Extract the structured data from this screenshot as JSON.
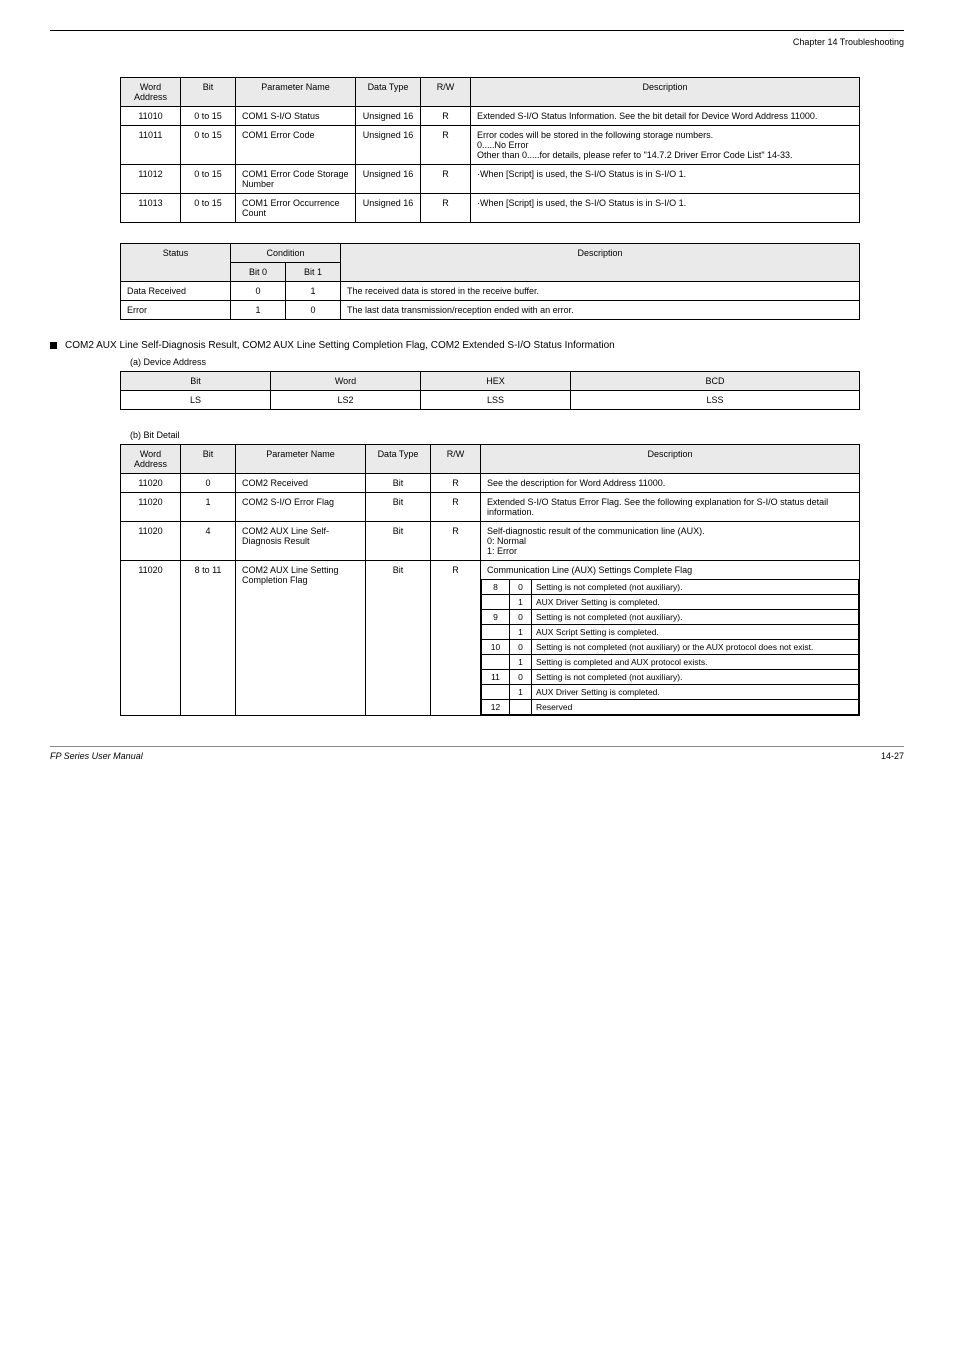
{
  "header_right": "Chapter 14 Troubleshooting",
  "table1": {
    "columns": [
      "Word Address",
      "Bit",
      "Parameter Name",
      "Data Type",
      "R/W",
      "Description"
    ],
    "rows": [
      {
        "wa": "11010",
        "bit": "0 to 15",
        "pname": "COM1 S-I/O Status",
        "dtype": "Unsigned 16",
        "rw": "R",
        "desc": "Extended S-I/O Status Information. See the bit detail for Device Word Address 11000."
      },
      {
        "wa": "11011",
        "bit": "0 to 15",
        "pname": "COM1 Error Code",
        "dtype": "Unsigned 16",
        "rw": "R",
        "desc": "Error codes will be stored in the following storage numbers.\n0.....No Error\nOther than 0.....for details, please refer to \"14.7.2 Driver Error Code List\"  14-33."
      },
      {
        "wa": "11012",
        "bit": "0 to 15",
        "pname": "COM1 Error Code Storage Number",
        "dtype": "Unsigned 16",
        "rw": "R",
        "desc": "·When [Script] is used, the S-I/O Status is in S-I/O 1."
      },
      {
        "wa": "11013",
        "bit": "0 to 15",
        "pname": "COM1 Error Occurrence Count",
        "dtype": "Unsigned 16",
        "rw": "R",
        "desc": "·When [Script] is used, the S-I/O Status is in S-I/O 1."
      }
    ]
  },
  "table2": {
    "header_top": [
      "Condition",
      "Condition",
      "Description"
    ],
    "header_sub": [
      "Bit 0",
      "Bit 1"
    ],
    "col0_label": "Status",
    "rows": [
      {
        "st": "Data Received",
        "b0": "0",
        "b1": "1",
        "desc": "The received data is stored in the receive buffer."
      },
      {
        "st": "Error",
        "b0": "1",
        "b1": "0",
        "desc": "The last data transmission/reception ended with an error."
      }
    ]
  },
  "heading_text": "COM2 AUX Line Self-Diagnosis Result, COM2 AUX Line Setting Completion Flag, COM2 Extended S-I/O Status Information",
  "subcap_a": "(a) Device Address",
  "table3": {
    "columns": [
      "Bit",
      "Word",
      "HEX",
      "BCD"
    ],
    "row": [
      "LS",
      "LS2",
      "LSS",
      "LSS"
    ]
  },
  "subcap_b": "(b) Bit Detail",
  "table4": {
    "columns": [
      "Word Address",
      "Bit",
      "Parameter Name",
      "Data Type",
      "R/W",
      "Description"
    ],
    "rows": [
      {
        "wa": "11020",
        "bit": "0",
        "pname": "COM2 Received",
        "dtype": "Bit",
        "rw": "R",
        "desc": "See the description for Word Address 11000."
      },
      {
        "wa": "11020",
        "bit": "1",
        "pname": "COM2 S-I/O Error Flag",
        "dtype": "Bit",
        "rw": "R",
        "desc": "Extended S-I/O Status Error Flag. See the following explanation for S-I/O status detail information."
      },
      {
        "wa": "11020",
        "bit": "4",
        "pname": "COM2 AUX Line Self-Diagnosis Result",
        "dtype": "Bit",
        "rw": "R",
        "desc": "Self-diagnostic result of the communication line (AUX).\n0: Normal\n1: Error"
      }
    ],
    "row_nested": {
      "wa": "11020",
      "bit": "8 to 11",
      "pname": "COM2 AUX Line Setting Completion Flag",
      "dtype": "Bit",
      "rw": "R",
      "pre": "Communication Line (AUX) Settings Complete Flag",
      "inner": [
        [
          "8",
          "0",
          "Setting is not completed (not auxiliary)."
        ],
        [
          "",
          "1",
          "AUX Driver Setting is completed."
        ],
        [
          "9",
          "0",
          "Setting is not completed (not auxiliary)."
        ],
        [
          "",
          "1",
          "AUX Script Setting is completed."
        ],
        [
          "10",
          "0",
          "Setting is not completed (not auxiliary) or the AUX protocol does not exist."
        ],
        [
          "",
          "1",
          "Setting is completed and AUX protocol exists."
        ],
        [
          "11",
          "0",
          "Setting is not completed (not auxiliary)."
        ],
        [
          "",
          "1",
          "AUX Driver Setting is completed."
        ],
        [
          "12",
          "",
          "Reserved"
        ]
      ]
    }
  },
  "footer_left": "FP Series User Manual",
  "footer_right": "14-27",
  "colors": {
    "header_bg": "#eaeaea",
    "border": "#000000"
  },
  "col_widths": {
    "t1": [
      "60",
      "55",
      "120",
      "65",
      "50",
      "auto"
    ],
    "t2": [
      "110",
      "55",
      "55",
      "auto"
    ],
    "t3": [
      "150",
      "150",
      "150",
      "auto"
    ],
    "t4": [
      "60",
      "55",
      "130",
      "65",
      "50",
      "auto"
    ]
  }
}
